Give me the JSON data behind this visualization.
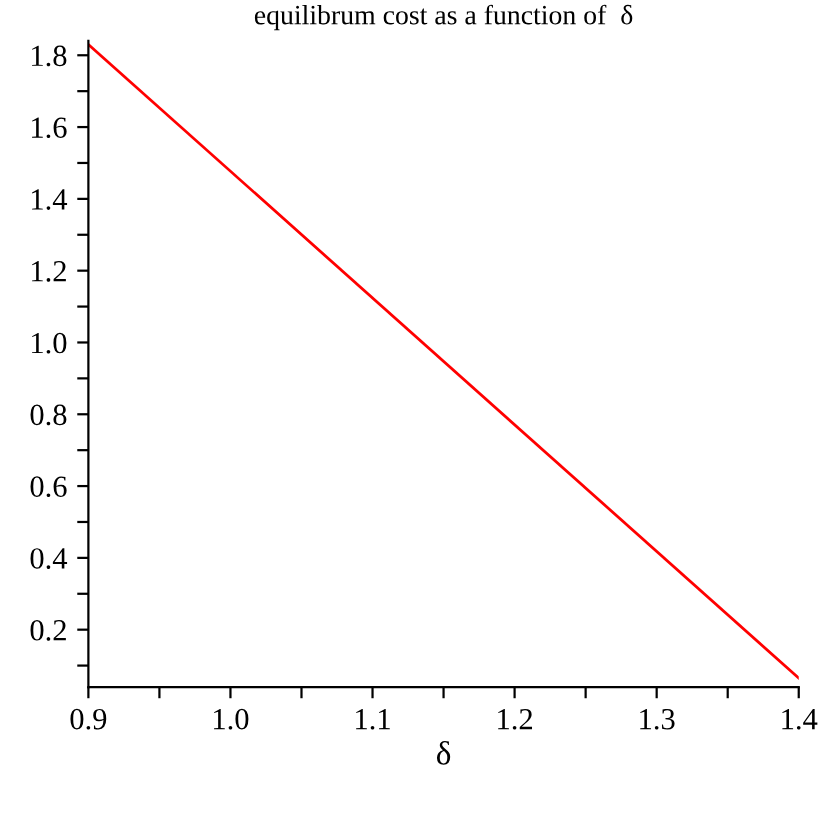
{
  "chart_data": {
    "type": "line",
    "title": "equilibrum cost as a function of  δ",
    "xlabel": "δ",
    "series": [
      {
        "color": "#ff0000",
        "x": [
          0.9,
          1.4
        ],
        "values": [
          1.83,
          0.065
        ]
      }
    ],
    "xlim": [
      0.9,
      1.4
    ],
    "xticks": [
      0.9,
      {
        "value": 0.95,
        "label": null
      },
      {
        "value": 1.0,
        "label": "1.0"
      },
      {
        "value": 1.05,
        "label": null
      },
      1.1,
      {
        "value": 1.15,
        "label": null
      },
      1.2,
      {
        "value": 1.25,
        "label": null
      },
      1.3,
      {
        "value": 1.35,
        "label": null
      },
      1.4
    ],
    "ylim": [
      0.04,
      1.84
    ],
    "yticks": [
      {
        "value": 0.1,
        "label": null
      },
      0.2,
      {
        "value": 0.3,
        "label": null
      },
      0.4,
      {
        "value": 0.5,
        "label": null
      },
      0.6,
      {
        "value": 0.7,
        "label": null
      },
      0.8,
      {
        "value": 0.9,
        "label": null
      },
      {
        "value": 1.0,
        "label": "1.0"
      },
      {
        "value": 1.1,
        "label": null
      },
      1.2,
      {
        "value": 1.3,
        "label": null
      },
      1.4,
      {
        "value": 1.5,
        "label": null
      },
      1.6,
      {
        "value": 1.7,
        "label": null
      },
      1.8
    ],
    "grid": false,
    "legend": false,
    "marker": "none",
    "line_style": "solid"
  }
}
